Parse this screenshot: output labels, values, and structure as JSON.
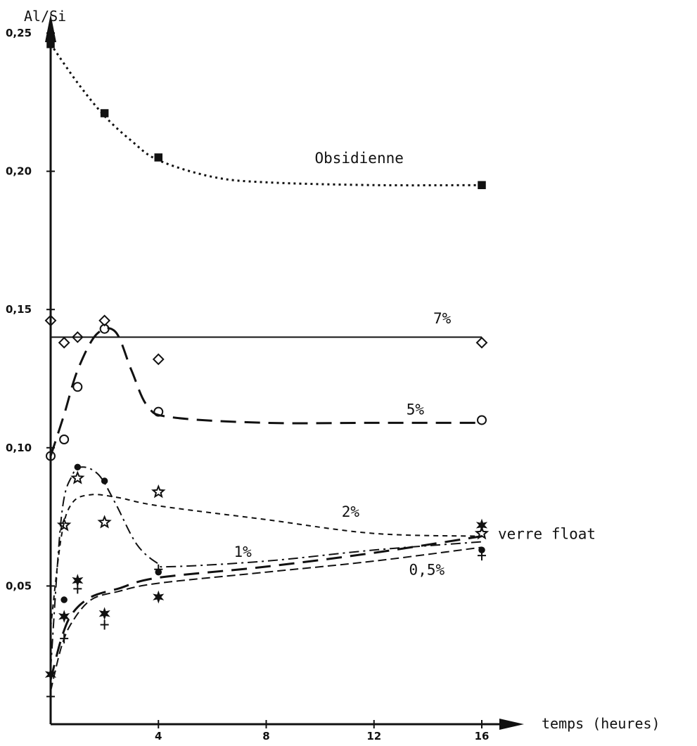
{
  "chart_data": {
    "type": "line",
    "title": "",
    "xlabel": "temps (heures)",
    "ylabel": "Al/Si",
    "xlim": [
      0,
      16
    ],
    "ylim": [
      0,
      0.25
    ],
    "grid": false,
    "legend": "none",
    "x_tick_labels": [
      {
        "value": 4,
        "label": "4"
      },
      {
        "value": 8,
        "label": "8"
      },
      {
        "value": 12,
        "label": "12"
      },
      {
        "value": 16,
        "label": "16"
      }
    ],
    "y_tick_labels": [
      {
        "value": 0.05,
        "label": "0,05"
      },
      {
        "value": 0.1,
        "label": "0,10"
      },
      {
        "value": 0.15,
        "label": "0,15"
      },
      {
        "value": 0.2,
        "label": "0,20"
      },
      {
        "value": 0.25,
        "label": "0,25"
      }
    ],
    "series": [
      {
        "name": "Obsidienne",
        "marker": "filled-square",
        "line": "dotted",
        "points": [
          [
            0,
            0.246
          ],
          [
            2,
            0.221
          ],
          [
            4,
            0.205
          ],
          [
            16,
            0.195
          ]
        ],
        "curve": [
          [
            0,
            0.246
          ],
          [
            1,
            0.232
          ],
          [
            2,
            0.22
          ],
          [
            3,
            0.211
          ],
          [
            4,
            0.204
          ],
          [
            6,
            0.198
          ],
          [
            8,
            0.196
          ],
          [
            12,
            0.195
          ],
          [
            16,
            0.195
          ]
        ]
      },
      {
        "name": "7%",
        "marker": "diamond",
        "line": "solid",
        "points": [
          [
            0,
            0.146
          ],
          [
            0.5,
            0.138
          ],
          [
            1,
            0.14
          ],
          [
            2,
            0.146
          ],
          [
            4,
            0.132
          ],
          [
            16,
            0.138
          ]
        ],
        "curve": [
          [
            0,
            0.14
          ],
          [
            16,
            0.14
          ]
        ]
      },
      {
        "name": "5%",
        "marker": "open-circle",
        "line": "long-dash",
        "points": [
          [
            0,
            0.097
          ],
          [
            0.5,
            0.103
          ],
          [
            1,
            0.122
          ],
          [
            2,
            0.143
          ],
          [
            4,
            0.113
          ],
          [
            16,
            0.11
          ]
        ],
        "curve": [
          [
            0,
            0.097
          ],
          [
            0.5,
            0.112
          ],
          [
            1,
            0.128
          ],
          [
            1.7,
            0.141
          ],
          [
            2.4,
            0.142
          ],
          [
            3,
            0.128
          ],
          [
            3.6,
            0.115
          ],
          [
            4.5,
            0.111
          ],
          [
            8,
            0.109
          ],
          [
            12,
            0.109
          ],
          [
            16,
            0.109
          ]
        ]
      },
      {
        "name": "2%",
        "marker": "open-star",
        "line": "short-dash",
        "points": [
          [
            0.5,
            0.072
          ],
          [
            1,
            0.089
          ],
          [
            2,
            0.073
          ],
          [
            4,
            0.084
          ],
          [
            16,
            0.069
          ]
        ],
        "curve": [
          [
            0,
            0.035
          ],
          [
            0.4,
            0.068
          ],
          [
            0.8,
            0.08
          ],
          [
            1.5,
            0.083
          ],
          [
            2.5,
            0.082
          ],
          [
            4,
            0.079
          ],
          [
            8,
            0.074
          ],
          [
            12,
            0.069
          ],
          [
            16,
            0.068
          ]
        ]
      },
      {
        "name": "1%",
        "marker": "filled-dot",
        "line": "dash-dot",
        "points": [
          [
            0.5,
            0.045
          ],
          [
            1,
            0.093
          ],
          [
            2,
            0.088
          ],
          [
            4,
            0.055
          ],
          [
            16,
            0.063
          ]
        ],
        "curve": [
          [
            0,
            0.02
          ],
          [
            0.4,
            0.075
          ],
          [
            0.8,
            0.09
          ],
          [
            1.2,
            0.093
          ],
          [
            1.8,
            0.09
          ],
          [
            2.4,
            0.08
          ],
          [
            3.2,
            0.065
          ],
          [
            4,
            0.058
          ],
          [
            4.5,
            0.057
          ],
          [
            8,
            0.059
          ],
          [
            12,
            0.063
          ],
          [
            16,
            0.066
          ]
        ]
      },
      {
        "name": "0,5%",
        "marker": "cross",
        "line": "dashed",
        "points": [
          [
            0,
            0.01
          ],
          [
            0.5,
            0.031
          ],
          [
            1,
            0.049
          ],
          [
            2,
            0.036
          ],
          [
            4,
            0.056
          ],
          [
            16,
            0.061
          ]
        ],
        "curve": [
          [
            0,
            0.012
          ],
          [
            0.4,
            0.028
          ],
          [
            0.8,
            0.037
          ],
          [
            1.5,
            0.045
          ],
          [
            2.5,
            0.048
          ],
          [
            4,
            0.051
          ],
          [
            8,
            0.055
          ],
          [
            12,
            0.059
          ],
          [
            16,
            0.064
          ]
        ]
      },
      {
        "name": "verre float",
        "marker": "six-point-star",
        "line": "long-dash",
        "points": [
          [
            0,
            0.018
          ],
          [
            0.5,
            0.039
          ],
          [
            1,
            0.052
          ],
          [
            2,
            0.04
          ],
          [
            4,
            0.046
          ],
          [
            16,
            0.072
          ]
        ],
        "curve": [
          [
            0,
            0.016
          ],
          [
            0.4,
            0.031
          ],
          [
            0.8,
            0.04
          ],
          [
            1.5,
            0.046
          ],
          [
            2.5,
            0.049
          ],
          [
            4,
            0.053
          ],
          [
            8,
            0.057
          ],
          [
            12,
            0.062
          ],
          [
            16,
            0.068
          ]
        ]
      }
    ],
    "annotations": [
      {
        "text": "Obsidienne",
        "x": 9.8,
        "y": 0.203
      },
      {
        "text": "7%",
        "x": 14.2,
        "y": 0.145
      },
      {
        "text": "5%",
        "x": 13.2,
        "y": 0.112
      },
      {
        "text": "2%",
        "x": 10.8,
        "y": 0.075
      },
      {
        "text": "1%",
        "x": 6.8,
        "y": 0.0605
      },
      {
        "text": "0,5%",
        "x": 13.3,
        "y": 0.054
      },
      {
        "text": "verre float",
        "x": 16.6,
        "y": 0.067
      }
    ]
  }
}
